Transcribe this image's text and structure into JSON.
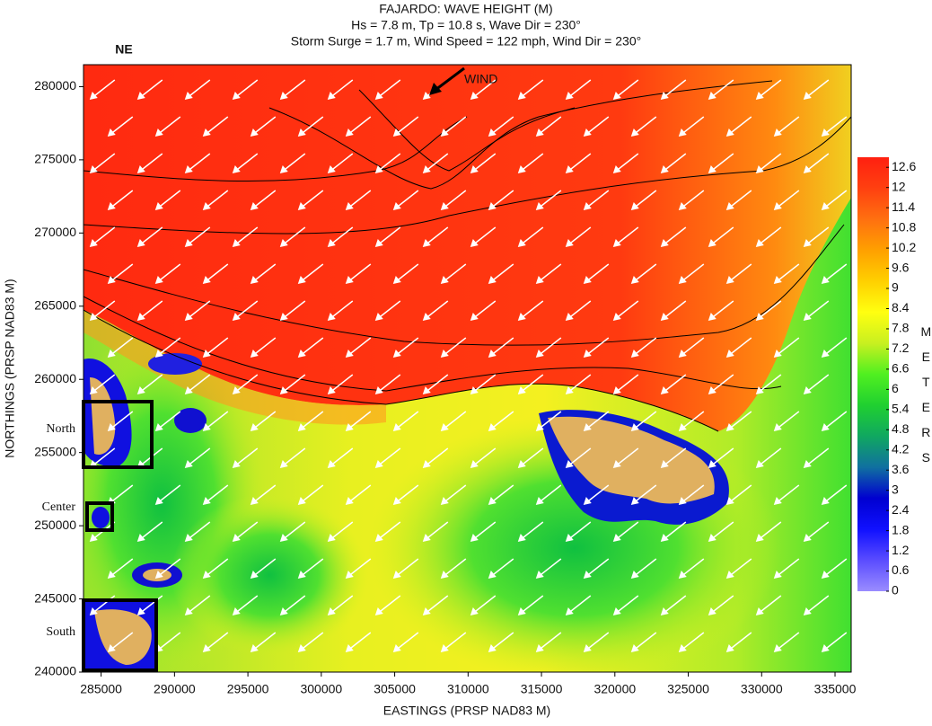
{
  "chart_data": {
    "type": "heatmap",
    "title": "FAJARDO: WAVE HEIGHT (M)",
    "subtitle": [
      "Hs = 7.8 m, Tp = 10.8 s, Wave Dir = 230°",
      "Storm Surge = 1.7 m, Wind Speed = 122 mph, Wind Dir = 230°"
    ],
    "x_label": "EASTINGS (PRSP NAD83 M)",
    "y_label": "NORTHINGS (PRSP NAD83 M)",
    "xlim": [
      283800,
      336100
    ],
    "ylim": [
      240000,
      281500
    ],
    "xticks": [
      285000,
      290000,
      295000,
      300000,
      305000,
      310000,
      315000,
      320000,
      325000,
      330000,
      335000
    ],
    "yticks": [
      240000,
      245000,
      250000,
      255000,
      260000,
      265000,
      270000,
      275000,
      280000
    ],
    "colorbar": {
      "label": "METERS",
      "lim": [
        0,
        12.9
      ],
      "ticks": [
        0,
        0.6,
        1.2,
        1.8,
        2.4,
        3,
        3.6,
        4.2,
        4.8,
        5.4,
        6,
        6.6,
        7.2,
        7.8,
        8.4,
        9,
        9.6,
        10.2,
        10.8,
        11.4,
        12,
        12.6
      ],
      "colors": [
        "#9a8cff",
        "#5a4cff",
        "#1010ff",
        "#0000d0",
        "#1070a0",
        "#10a860",
        "#20d030",
        "#50f020",
        "#c8f020",
        "#ffff10",
        "#ffd000",
        "#ffa000",
        "#ff7010",
        "#ff4010",
        "#ff2010"
      ]
    },
    "annotations": [
      "NE",
      "WIND",
      "North",
      "Center",
      "South"
    ]
  }
}
